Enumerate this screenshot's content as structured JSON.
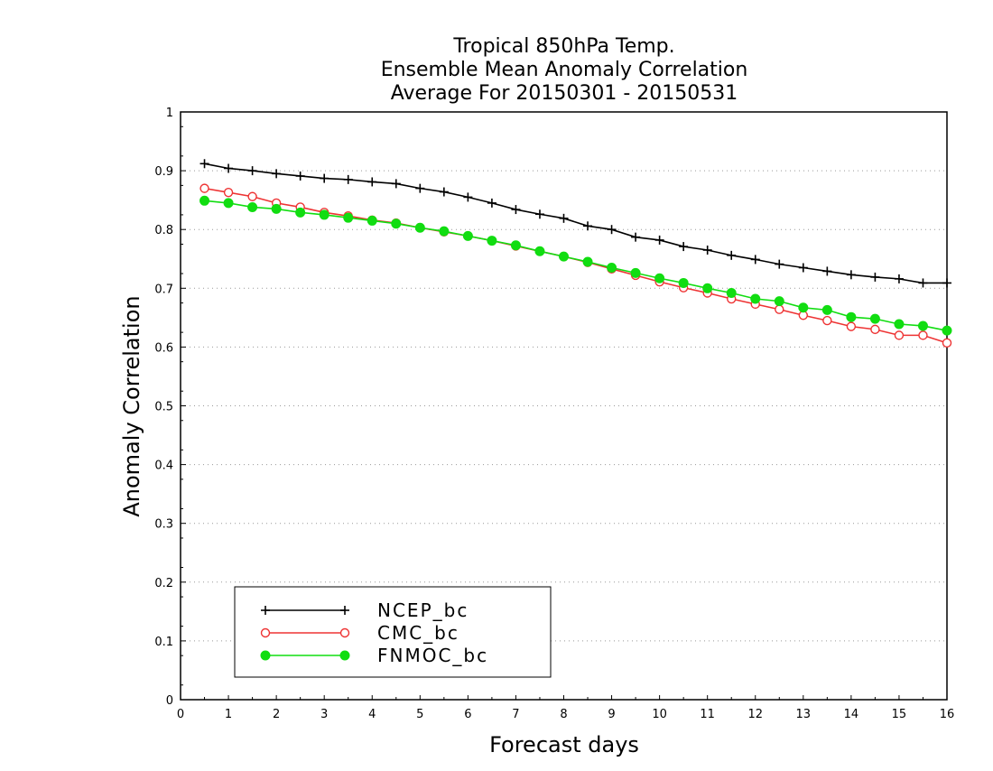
{
  "chart_data": {
    "type": "line",
    "title_lines": [
      "Tropical 850hPa Temp.",
      "Ensemble Mean Anomaly Correlation",
      "Average For 20150301 - 20150531"
    ],
    "xlabel": "Forecast days",
    "ylabel": "Anomaly Correlation",
    "xlim": [
      0,
      16
    ],
    "ylim": [
      0,
      1
    ],
    "x_ticks": [
      0,
      1,
      2,
      3,
      4,
      5,
      6,
      7,
      8,
      9,
      10,
      11,
      12,
      13,
      14,
      15,
      16
    ],
    "x_tick_labels": [
      "0",
      "1",
      "2",
      "3",
      "4",
      "5",
      "6",
      "7",
      "8",
      "9",
      "10",
      "11",
      "12",
      "13",
      "14",
      "15",
      "16"
    ],
    "y_ticks": [
      0,
      0.1,
      0.2,
      0.3,
      0.4,
      0.5,
      0.6,
      0.7,
      0.8,
      0.9,
      1
    ],
    "y_tick_labels": [
      "0",
      "0.1",
      "0.2",
      "0.3",
      "0.4",
      "0.5",
      "0.6",
      "0.7",
      "0.8",
      "0.9",
      "1"
    ],
    "grid": "horizontal dotted",
    "legend_position": "bottom-left",
    "x": [
      0.5,
      1,
      1.5,
      2,
      2.5,
      3,
      3.5,
      4,
      4.5,
      5,
      5.5,
      6,
      6.5,
      7,
      7.5,
      8,
      8.5,
      9,
      9.5,
      10,
      10.5,
      11,
      11.5,
      12,
      12.5,
      13,
      13.5,
      14,
      14.5,
      15,
      15.5,
      16
    ],
    "series": [
      {
        "name": "NCEP_bc",
        "color": "#000000",
        "marker": "plus",
        "values": [
          0.912,
          0.904,
          0.9,
          0.895,
          0.891,
          0.887,
          0.885,
          0.881,
          0.878,
          0.87,
          0.864,
          0.855,
          0.845,
          0.834,
          0.826,
          0.819,
          0.806,
          0.8,
          0.787,
          0.782,
          0.771,
          0.765,
          0.756,
          0.749,
          0.741,
          0.735,
          0.729,
          0.723,
          0.719,
          0.716,
          0.709,
          0.709
        ]
      },
      {
        "name": "CMC_bc",
        "color": "#ee3333",
        "marker": "open-circle",
        "values": [
          0.87,
          0.863,
          0.856,
          0.845,
          0.838,
          0.829,
          0.823,
          0.816,
          0.811,
          0.803,
          0.796,
          0.789,
          0.781,
          0.772,
          0.763,
          0.754,
          0.744,
          0.733,
          0.722,
          0.711,
          0.701,
          0.692,
          0.682,
          0.673,
          0.664,
          0.654,
          0.645,
          0.635,
          0.63,
          0.62,
          0.62,
          0.607
        ]
      },
      {
        "name": "FNMOC_bc",
        "color": "#11dd11",
        "marker": "filled-circle",
        "values": [
          0.849,
          0.845,
          0.838,
          0.835,
          0.829,
          0.825,
          0.82,
          0.815,
          0.81,
          0.803,
          0.797,
          0.789,
          0.781,
          0.773,
          0.763,
          0.754,
          0.745,
          0.735,
          0.726,
          0.717,
          0.709,
          0.7,
          0.692,
          0.682,
          0.678,
          0.667,
          0.663,
          0.651,
          0.648,
          0.639,
          0.636,
          0.628
        ]
      }
    ]
  }
}
